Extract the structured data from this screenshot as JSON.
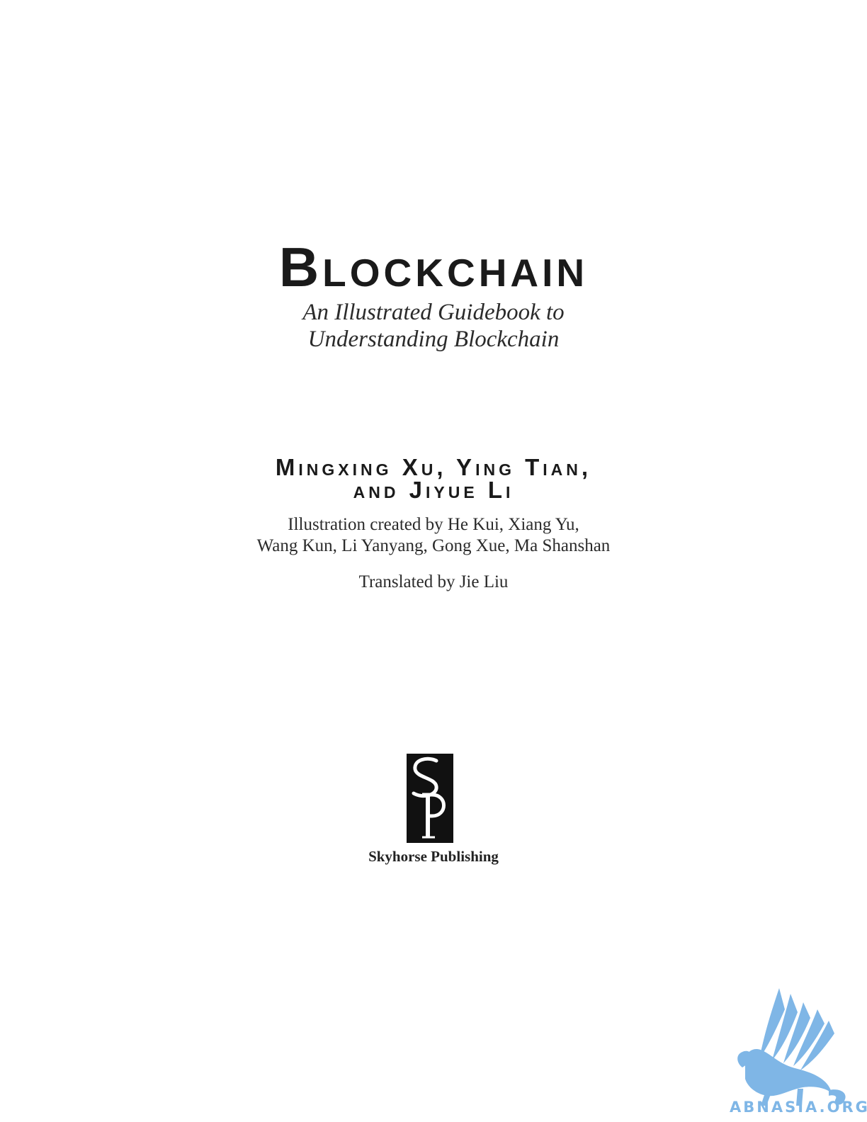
{
  "book": {
    "title": "Blockchain",
    "subtitle_lines": [
      "An Illustrated Guidebook to",
      "Understanding Blockchain"
    ],
    "authors_lines": [
      "Mingxing Xu, Ying Tian,",
      "and Jiyue Li"
    ],
    "illustration_lines": [
      "Illustration created by He Kui, Xiang Yu,",
      "Wang Kun, Li Yanyang, Gong Xue, Ma Shanshan"
    ],
    "translator": "Translated by Jie Liu",
    "publisher": "Skyhorse Publishing",
    "logo_letters": "SP"
  },
  "watermark": {
    "text": "ABNASIA.ORG",
    "color": "#7fb6e6"
  }
}
